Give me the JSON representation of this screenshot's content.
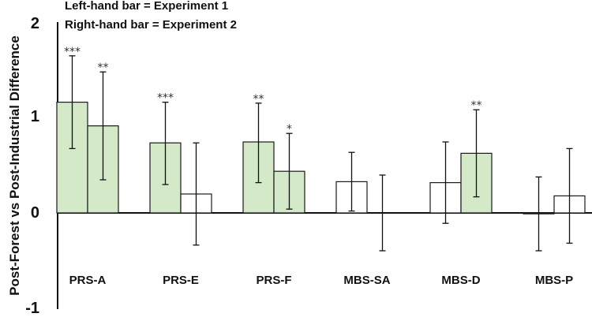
{
  "chart_data": {
    "type": "bar",
    "notes": [
      "Left-hand bar = Experiment 1",
      "Right-hand bar = Experiment 2"
    ],
    "ylabel": "Post-Forest vs Post-Industrial Difference",
    "xlabel": "",
    "ylim": [
      -1,
      2
    ],
    "yticks": [
      "2",
      "1",
      "0",
      "-1"
    ],
    "categories": [
      "PRS-A",
      "PRS-E",
      "PRS-F",
      "MBS-SA",
      "MBS-D",
      "MBS-P"
    ],
    "series": [
      {
        "name": "Experiment 1",
        "values": [
          1.17,
          0.74,
          0.75,
          0.33,
          0.32,
          -0.01
        ],
        "error_low": [
          0.68,
          0.3,
          0.32,
          0.02,
          -0.11,
          -0.4
        ],
        "error_high": [
          1.66,
          1.17,
          1.16,
          0.64,
          0.75,
          0.38
        ],
        "significant": [
          true,
          true,
          true,
          false,
          false,
          false
        ],
        "stars": [
          "***",
          "***",
          "**",
          "",
          "",
          ""
        ]
      },
      {
        "name": "Experiment 2",
        "values": [
          0.92,
          0.2,
          0.44,
          0.0,
          0.63,
          0.18
        ],
        "error_low": [
          0.35,
          -0.34,
          0.04,
          -0.4,
          0.17,
          -0.32
        ],
        "error_high": [
          1.49,
          0.74,
          0.84,
          0.4,
          1.09,
          0.68
        ],
        "significant": [
          true,
          false,
          true,
          false,
          true,
          false
        ],
        "stars": [
          "**",
          "",
          "*",
          "",
          "**",
          ""
        ]
      }
    ],
    "colors": {
      "significant": "#d3e9c8",
      "nonsignificant": "#ffffff",
      "edge": "#1a1a1a"
    }
  }
}
